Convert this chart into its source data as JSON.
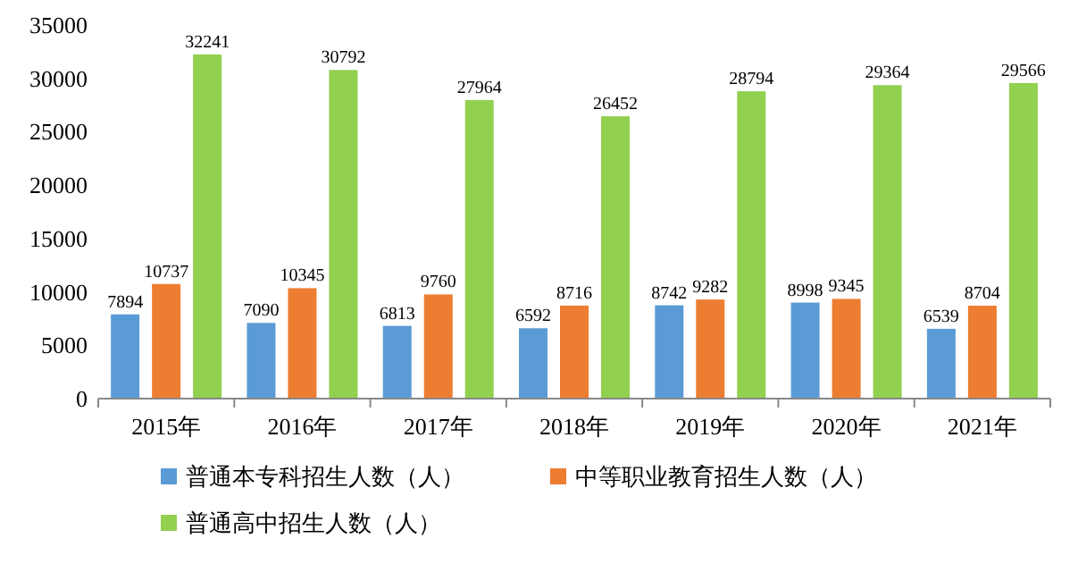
{
  "chart_data": {
    "type": "bar",
    "categories": [
      "2015年",
      "2016年",
      "2017年",
      "2018年",
      "2019年",
      "2020年",
      "2021年"
    ],
    "series": [
      {
        "name": "普通本专科招生人数（人）",
        "color": "#5b9bd5",
        "values": [
          7894,
          7090,
          6813,
          6592,
          8742,
          8998,
          6539
        ]
      },
      {
        "name": "中等职业教育招生人数（人）",
        "color": "#ed7d31",
        "values": [
          10737,
          10345,
          9760,
          8716,
          9282,
          9345,
          8704
        ]
      },
      {
        "name": "普通高中招生人数（人）",
        "color": "#92d050",
        "values": [
          32241,
          30792,
          27964,
          26452,
          28794,
          29364,
          29566
        ]
      }
    ],
    "ylim": [
      0,
      35000
    ],
    "yticks": [
      0,
      5000,
      10000,
      15000,
      20000,
      25000,
      30000,
      35000
    ],
    "data_labels": true,
    "legend": "bottom"
  }
}
